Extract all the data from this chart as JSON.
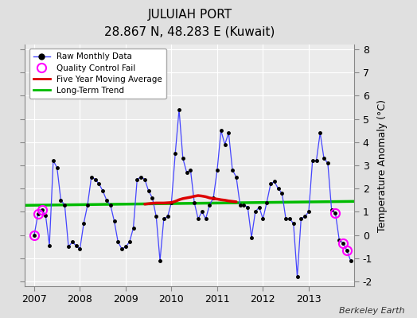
{
  "title": "JULUIAH PORT",
  "subtitle": "28.867 N, 48.283 E (Kuwait)",
  "ylabel": "Temperature Anomaly (°C)",
  "attribution": "Berkeley Earth",
  "ylim": [
    -2.2,
    8.2
  ],
  "yticks": [
    -2,
    -1,
    0,
    1,
    2,
    3,
    4,
    5,
    6,
    7,
    8
  ],
  "xlim": [
    2006.8,
    2014.0
  ],
  "xticks": [
    2007,
    2008,
    2009,
    2010,
    2011,
    2012,
    2013
  ],
  "bg_color": "#e0e0e0",
  "plot_bg_color": "#ebebeb",
  "grid_color": "#ffffff",
  "raw_color": "#4444ff",
  "raw_marker_color": "#000000",
  "ma_color": "#dd0000",
  "trend_color": "#00bb00",
  "qc_color": "#ff00ff",
  "raw_data": [
    [
      2007.0,
      0.0
    ],
    [
      2007.083,
      0.9
    ],
    [
      2007.167,
      1.1
    ],
    [
      2007.25,
      0.85
    ],
    [
      2007.333,
      -0.45
    ],
    [
      2007.417,
      3.2
    ],
    [
      2007.5,
      2.9
    ],
    [
      2007.583,
      1.5
    ],
    [
      2007.667,
      1.3
    ],
    [
      2007.75,
      -0.5
    ],
    [
      2007.833,
      -0.3
    ],
    [
      2007.917,
      -0.45
    ],
    [
      2008.0,
      -0.6
    ],
    [
      2008.083,
      0.5
    ],
    [
      2008.167,
      1.3
    ],
    [
      2008.25,
      2.5
    ],
    [
      2008.333,
      2.4
    ],
    [
      2008.417,
      2.2
    ],
    [
      2008.5,
      1.9
    ],
    [
      2008.583,
      1.5
    ],
    [
      2008.667,
      1.3
    ],
    [
      2008.75,
      0.6
    ],
    [
      2008.833,
      -0.3
    ],
    [
      2008.917,
      -0.6
    ],
    [
      2009.0,
      -0.5
    ],
    [
      2009.083,
      -0.3
    ],
    [
      2009.167,
      0.3
    ],
    [
      2009.25,
      2.4
    ],
    [
      2009.333,
      2.5
    ],
    [
      2009.417,
      2.4
    ],
    [
      2009.5,
      1.9
    ],
    [
      2009.583,
      1.6
    ],
    [
      2009.667,
      0.8
    ],
    [
      2009.75,
      -1.1
    ],
    [
      2009.833,
      0.7
    ],
    [
      2009.917,
      0.8
    ],
    [
      2010.0,
      1.4
    ],
    [
      2010.083,
      3.5
    ],
    [
      2010.167,
      5.4
    ],
    [
      2010.25,
      3.3
    ],
    [
      2010.333,
      2.7
    ],
    [
      2010.417,
      2.8
    ],
    [
      2010.5,
      1.4
    ],
    [
      2010.583,
      0.7
    ],
    [
      2010.667,
      1.0
    ],
    [
      2010.75,
      0.7
    ],
    [
      2010.833,
      1.3
    ],
    [
      2010.917,
      1.6
    ],
    [
      2011.0,
      2.8
    ],
    [
      2011.083,
      4.5
    ],
    [
      2011.167,
      3.9
    ],
    [
      2011.25,
      4.4
    ],
    [
      2011.333,
      2.8
    ],
    [
      2011.417,
      2.5
    ],
    [
      2011.5,
      1.3
    ],
    [
      2011.583,
      1.3
    ],
    [
      2011.667,
      1.2
    ],
    [
      2011.75,
      -0.1
    ],
    [
      2011.833,
      1.0
    ],
    [
      2011.917,
      1.2
    ],
    [
      2012.0,
      0.7
    ],
    [
      2012.083,
      1.4
    ],
    [
      2012.167,
      2.2
    ],
    [
      2012.25,
      2.3
    ],
    [
      2012.333,
      2.0
    ],
    [
      2012.417,
      1.8
    ],
    [
      2012.5,
      0.7
    ],
    [
      2012.583,
      0.7
    ],
    [
      2012.667,
      0.5
    ],
    [
      2012.75,
      -1.8
    ],
    [
      2012.833,
      0.7
    ],
    [
      2012.917,
      0.8
    ],
    [
      2013.0,
      1.0
    ],
    [
      2013.083,
      3.2
    ],
    [
      2013.167,
      3.2
    ],
    [
      2013.25,
      4.4
    ],
    [
      2013.333,
      3.3
    ],
    [
      2013.417,
      3.1
    ],
    [
      2013.5,
      1.1
    ],
    [
      2013.583,
      0.95
    ],
    [
      2013.667,
      -0.2
    ],
    [
      2013.75,
      -0.35
    ],
    [
      2013.833,
      -0.65
    ],
    [
      2013.917,
      -1.1
    ]
  ],
  "qc_fail_points": [
    [
      2007.0,
      0.0
    ],
    [
      2007.083,
      0.9
    ],
    [
      2007.167,
      1.1
    ],
    [
      2013.583,
      0.95
    ],
    [
      2013.75,
      -0.35
    ],
    [
      2013.833,
      -0.65
    ]
  ],
  "moving_avg": [
    [
      2009.417,
      1.33
    ],
    [
      2009.5,
      1.35
    ],
    [
      2009.583,
      1.37
    ],
    [
      2009.667,
      1.38
    ],
    [
      2009.75,
      1.38
    ],
    [
      2009.833,
      1.38
    ],
    [
      2009.917,
      1.39
    ],
    [
      2010.0,
      1.4
    ],
    [
      2010.083,
      1.45
    ],
    [
      2010.167,
      1.52
    ],
    [
      2010.25,
      1.57
    ],
    [
      2010.333,
      1.6
    ],
    [
      2010.417,
      1.63
    ],
    [
      2010.5,
      1.67
    ],
    [
      2010.583,
      1.7
    ],
    [
      2010.667,
      1.68
    ],
    [
      2010.75,
      1.65
    ],
    [
      2010.833,
      1.6
    ],
    [
      2010.917,
      1.57
    ],
    [
      2011.0,
      1.55
    ],
    [
      2011.083,
      1.52
    ],
    [
      2011.167,
      1.5
    ],
    [
      2011.25,
      1.47
    ],
    [
      2011.333,
      1.45
    ],
    [
      2011.417,
      1.43
    ]
  ],
  "trend_x": [
    2006.8,
    2014.0
  ],
  "trend_y": [
    1.28,
    1.45
  ]
}
